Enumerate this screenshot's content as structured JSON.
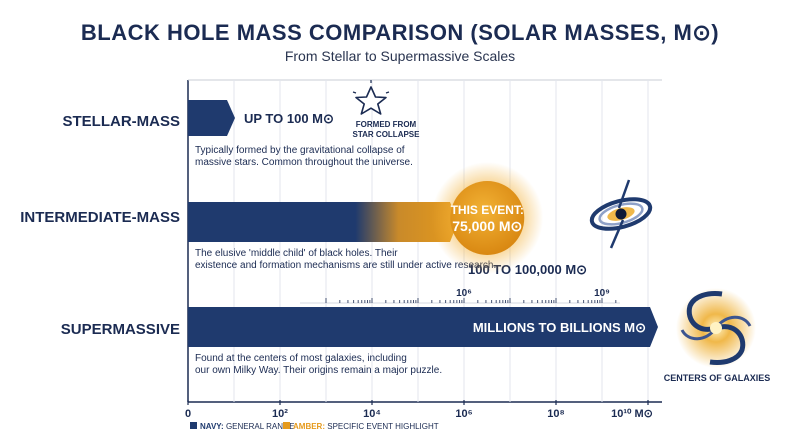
{
  "header": {
    "title": "BLACK HOLE MASS COMPARISON (SOLAR MASSES, M⊙)",
    "subtitle": "From Stellar to Supermassive Scales"
  },
  "chart_data": {
    "type": "bar",
    "orientation": "horizontal",
    "x_scale": "log",
    "xlim": [
      1,
      10000000000
    ],
    "x_unit": "M⊙",
    "x_ticks": [
      "0",
      "10²",
      "10⁴",
      "10⁶",
      "10⁸",
      "10¹⁰ M⊙"
    ],
    "categories": [
      {
        "name": "STELLAR-MASS",
        "range": [
          1,
          100
        ],
        "label": "UP TO 100 M⊙",
        "note": "Typically formed by the gravitational collapse of massive stars. Common throughout the universe.",
        "icon_caption": "FORMED FROM STAR COLLAPSE"
      },
      {
        "name": "INTERMEDIATE-MASS",
        "range": [
          100,
          100000
        ],
        "label": "100 TO 100,000 M⊙",
        "note": "The elusive 'middle child' of black holes. Their existence and formation mechanisms are still under active research."
      },
      {
        "name": "SUPERMASSIVE",
        "range": [
          1000000,
          10000000000
        ],
        "label": "MILLIONS TO BILLIONS M⊙",
        "note": "Found at the centers of most galaxies, including our own Milky Way. Their origins remain a major puzzle.",
        "icon_caption": "CENTERS OF GALAXIES",
        "inner_ticks": [
          "10⁶",
          "10⁹"
        ]
      }
    ],
    "highlight": {
      "label_line1": "THIS EVENT:",
      "label_line2": "75,000 M⊙",
      "value": 75000
    },
    "legend": [
      {
        "key": "NAVY:",
        "text": "GENERAL RANGE",
        "color": "#1f3a6e"
      },
      {
        "key": "AMBER:",
        "text": "SPECIFIC EVENT HIGHLIGHT",
        "color": "#e59a1c"
      }
    ],
    "grid": true
  },
  "colors": {
    "navy": "#1f3a6e",
    "navy_dark": "#17295a",
    "amber": "#e59a1c",
    "text": "#1b2b52"
  }
}
